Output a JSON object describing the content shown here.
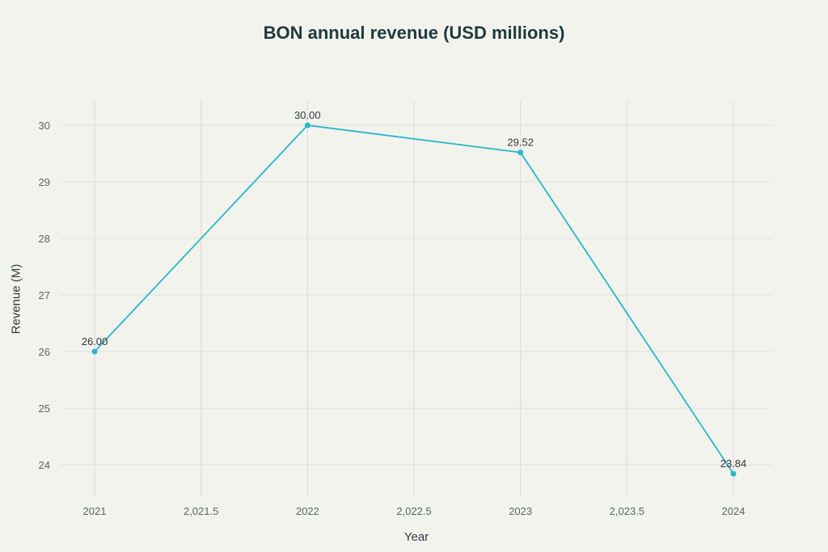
{
  "chart_data": {
    "type": "line",
    "title": "BON annual revenue (USD millions)",
    "xlabel": "Year",
    "ylabel": "Revenue (M)",
    "x": [
      2021,
      2022,
      2023,
      2024
    ],
    "series": [
      {
        "name": "Revenue",
        "values": [
          26.0,
          30.0,
          29.52,
          23.84
        ],
        "labels": [
          "26.00",
          "30.00",
          "29.52",
          "23.84"
        ],
        "color": "#2ab7c9"
      }
    ],
    "xlim": [
      2020.85,
      2024.18
    ],
    "ylim": [
      23.5,
      30.4
    ],
    "xticks": [
      2021,
      2021.5,
      2022,
      2022.5,
      2023,
      2023.5,
      2024
    ],
    "xtick_labels": [
      "2021",
      "2,021.5",
      "2022",
      "2,022.5",
      "2023",
      "2,023.5",
      "2024"
    ],
    "yticks": [
      24,
      25,
      26,
      27,
      28,
      29,
      30
    ],
    "ytick_labels": [
      "24",
      "25",
      "26",
      "27",
      "28",
      "29",
      "30"
    ],
    "grid": true,
    "grid_colors": {
      "vertical": "#e3d6d6",
      "horizontal": "#e2e0da"
    }
  }
}
